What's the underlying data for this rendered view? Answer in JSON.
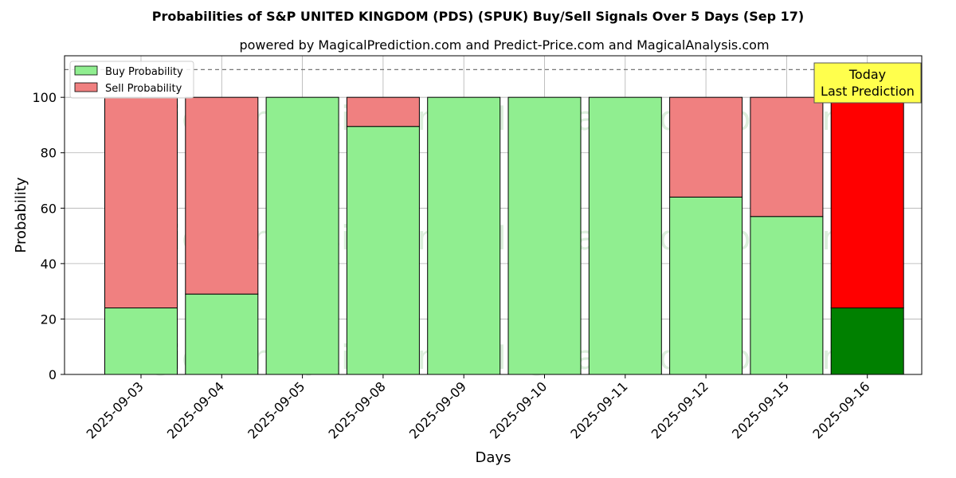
{
  "chart_data": {
    "type": "bar",
    "stacked": true,
    "title": "Probabilities of S&P UNITED KINGDOM (PDS) (SPUK) Buy/Sell Signals Over 5 Days (Sep 17)",
    "subtitle": "powered by MagicalPrediction.com and Predict-Price.com and MagicalAnalysis.com",
    "xlabel": "Days",
    "ylabel": "Probability",
    "ylim": [
      0,
      115
    ],
    "yticks": [
      0,
      20,
      40,
      60,
      80,
      100
    ],
    "reference_line": 110,
    "grid": true,
    "legend_position": "top-left",
    "categories": [
      "2025-09-03",
      "2025-09-04",
      "2025-09-05",
      "2025-09-08",
      "2025-09-09",
      "2025-09-10",
      "2025-09-11",
      "2025-09-12",
      "2025-09-15",
      "2025-09-16"
    ],
    "series": [
      {
        "name": "Buy Probability",
        "color": "#90ee90",
        "values": [
          24,
          29,
          100,
          89.5,
          100,
          100,
          100,
          64,
          57,
          24
        ]
      },
      {
        "name": "Sell Probability",
        "color": "#f08080",
        "values": [
          76,
          71,
          0,
          10.5,
          0,
          0,
          0,
          36,
          43,
          76
        ]
      }
    ],
    "highlight": {
      "index": 9,
      "buy_color": "#008000",
      "sell_color": "#ff0000",
      "label_line1": "Today",
      "label_line2": "Last Prediction",
      "label_bg": "#ffff4d"
    },
    "watermarks": [
      "MagicalAnalysis.com",
      "MagicalPrediction.com"
    ]
  }
}
